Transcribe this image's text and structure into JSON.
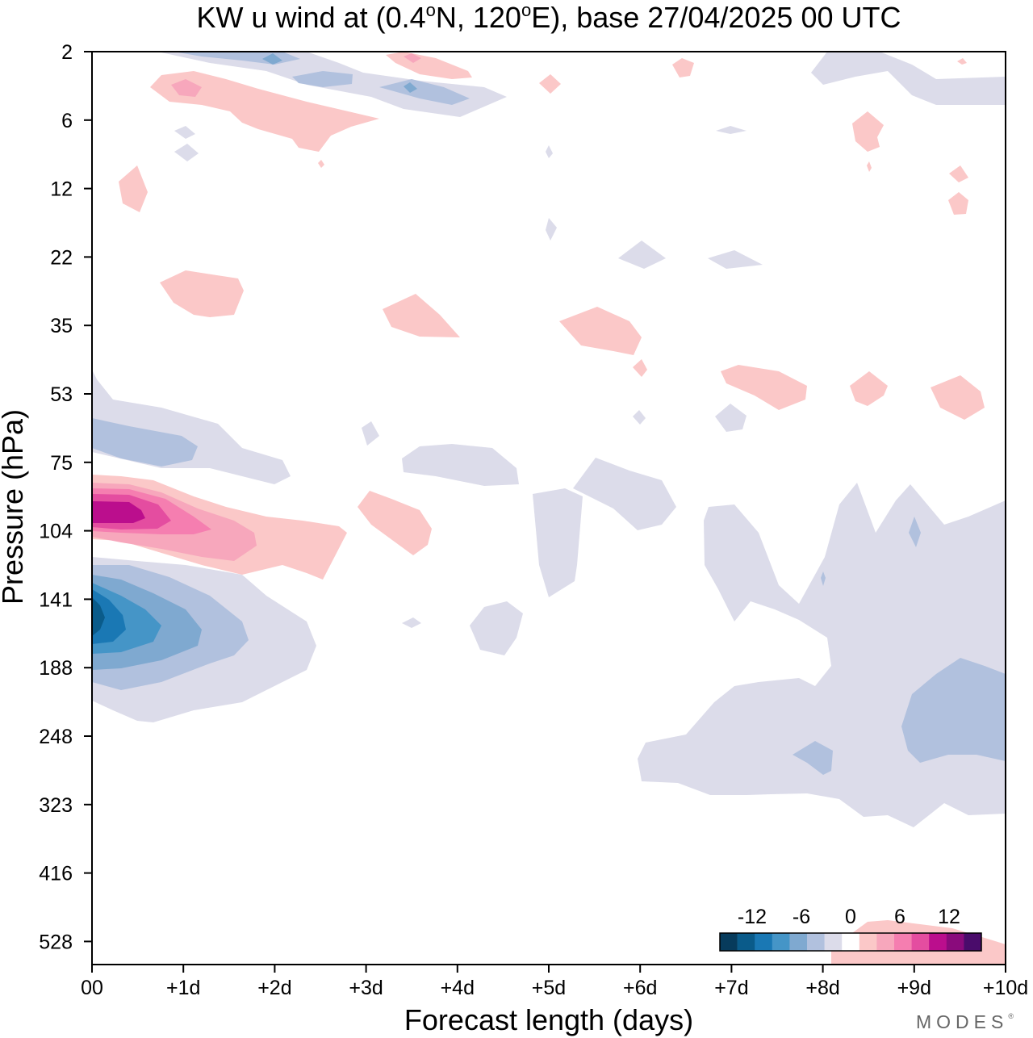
{
  "chart_data": {
    "type": "heatmap",
    "title_prefix": "KW u wind at (0.4",
    "title_lat": "N, 120",
    "title_suffix": "E),  base 27/04/2025  00 UTC",
    "deg_symbol": "o",
    "xlabel": "Forecast length (days)",
    "ylabel": "Pressure (hPa)",
    "x_ticks": [
      "00",
      "+1d",
      "+2d",
      "+3d",
      "+4d",
      "+5d",
      "+6d",
      "+7d",
      "+8d",
      "+9d",
      "+10d"
    ],
    "x_range_days": [
      0,
      10
    ],
    "y_ticks": [
      "2",
      "6",
      "12",
      "22",
      "35",
      "53",
      "75",
      "104",
      "141",
      "188",
      "248",
      "323",
      "416",
      "528"
    ],
    "y_scale": "pressure levels, evenly spaced as ticked, 2 hPa at top",
    "colorbar": {
      "tick_labels": [
        "-12",
        "-6",
        "0",
        "6",
        "12"
      ],
      "colors": [
        "#073b5c",
        "#0a5b8a",
        "#1a78b4",
        "#4595c7",
        "#7fa9d0",
        "#b1c1de",
        "#dcdcea",
        "#ffffff",
        "#fbc8c8",
        "#f7a7bc",
        "#f57eb0",
        "#e44da0",
        "#bb0e8d",
        "#8a0b7c",
        "#4a0c6b"
      ]
    },
    "features": [
      {
        "name": "core max (positive u)",
        "x_day": 0.4,
        "p_hPa": 90,
        "max_level": 12
      },
      {
        "name": "core min (negative u)",
        "x_day": 0.1,
        "p_hPa": 150,
        "min_level": -12
      },
      {
        "name": "negative band",
        "x_day": 0.3,
        "p_hPa": 68,
        "level": -4
      },
      {
        "name": "negative region",
        "x_day": 9.5,
        "p_hPa": 230,
        "level": -4
      }
    ]
  },
  "brand": {
    "text": "MODES",
    "mark": "®"
  }
}
